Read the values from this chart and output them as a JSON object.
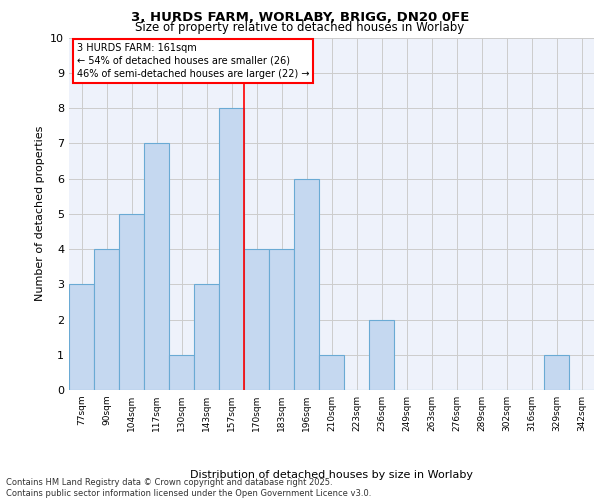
{
  "title_line1": "3, HURDS FARM, WORLABY, BRIGG, DN20 0FE",
  "title_line2": "Size of property relative to detached houses in Worlaby",
  "xlabel": "Distribution of detached houses by size in Worlaby",
  "ylabel": "Number of detached properties",
  "categories": [
    "77sqm",
    "90sqm",
    "104sqm",
    "117sqm",
    "130sqm",
    "143sqm",
    "157sqm",
    "170sqm",
    "183sqm",
    "196sqm",
    "210sqm",
    "223sqm",
    "236sqm",
    "249sqm",
    "263sqm",
    "276sqm",
    "289sqm",
    "302sqm",
    "316sqm",
    "329sqm",
    "342sqm"
  ],
  "values": [
    3,
    4,
    5,
    7,
    1,
    3,
    8,
    4,
    4,
    6,
    1,
    0,
    2,
    0,
    0,
    0,
    0,
    0,
    0,
    1,
    0
  ],
  "bar_color": "#c5d8f0",
  "bar_edge_color": "#6aaad4",
  "grid_color": "#cccccc",
  "background_color": "#eef2fb",
  "annotation_box_text": "3 HURDS FARM: 161sqm\n← 54% of detached houses are smaller (26)\n46% of semi-detached houses are larger (22) →",
  "red_line_bin": 6,
  "ylim": [
    0,
    10
  ],
  "yticks": [
    0,
    1,
    2,
    3,
    4,
    5,
    6,
    7,
    8,
    9,
    10
  ],
  "footer_line1": "Contains HM Land Registry data © Crown copyright and database right 2025.",
  "footer_line2": "Contains public sector information licensed under the Open Government Licence v3.0."
}
